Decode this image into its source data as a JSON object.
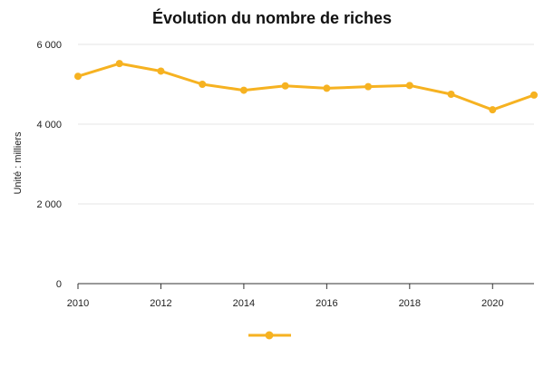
{
  "chart_data": {
    "type": "line",
    "title": "Évolution du nombre de riches",
    "xlabel": "",
    "ylabel": "Unité : milliers",
    "x": [
      2010,
      2011,
      2012,
      2013,
      2014,
      2015,
      2016,
      2017,
      2018,
      2019,
      2020,
      2021
    ],
    "x_tick_labels": [
      "2010",
      "2012",
      "2014",
      "2016",
      "2018",
      "2020"
    ],
    "x_ticks": [
      2010,
      2012,
      2014,
      2016,
      2018,
      2020
    ],
    "y_tick_labels": [
      "0",
      "2 000",
      "4 000",
      "6 000"
    ],
    "y_ticks": [
      0,
      2000,
      4000,
      6000
    ],
    "xlim": [
      2010,
      2021
    ],
    "ylim": [
      0,
      6000
    ],
    "grid": true,
    "legend_position": "bottom",
    "series": [
      {
        "color": "#f6b221",
        "values": [
          5200,
          5520,
          5330,
          5000,
          4850,
          4960,
          4900,
          4940,
          4970,
          4750,
          4360,
          4730
        ]
      }
    ]
  }
}
